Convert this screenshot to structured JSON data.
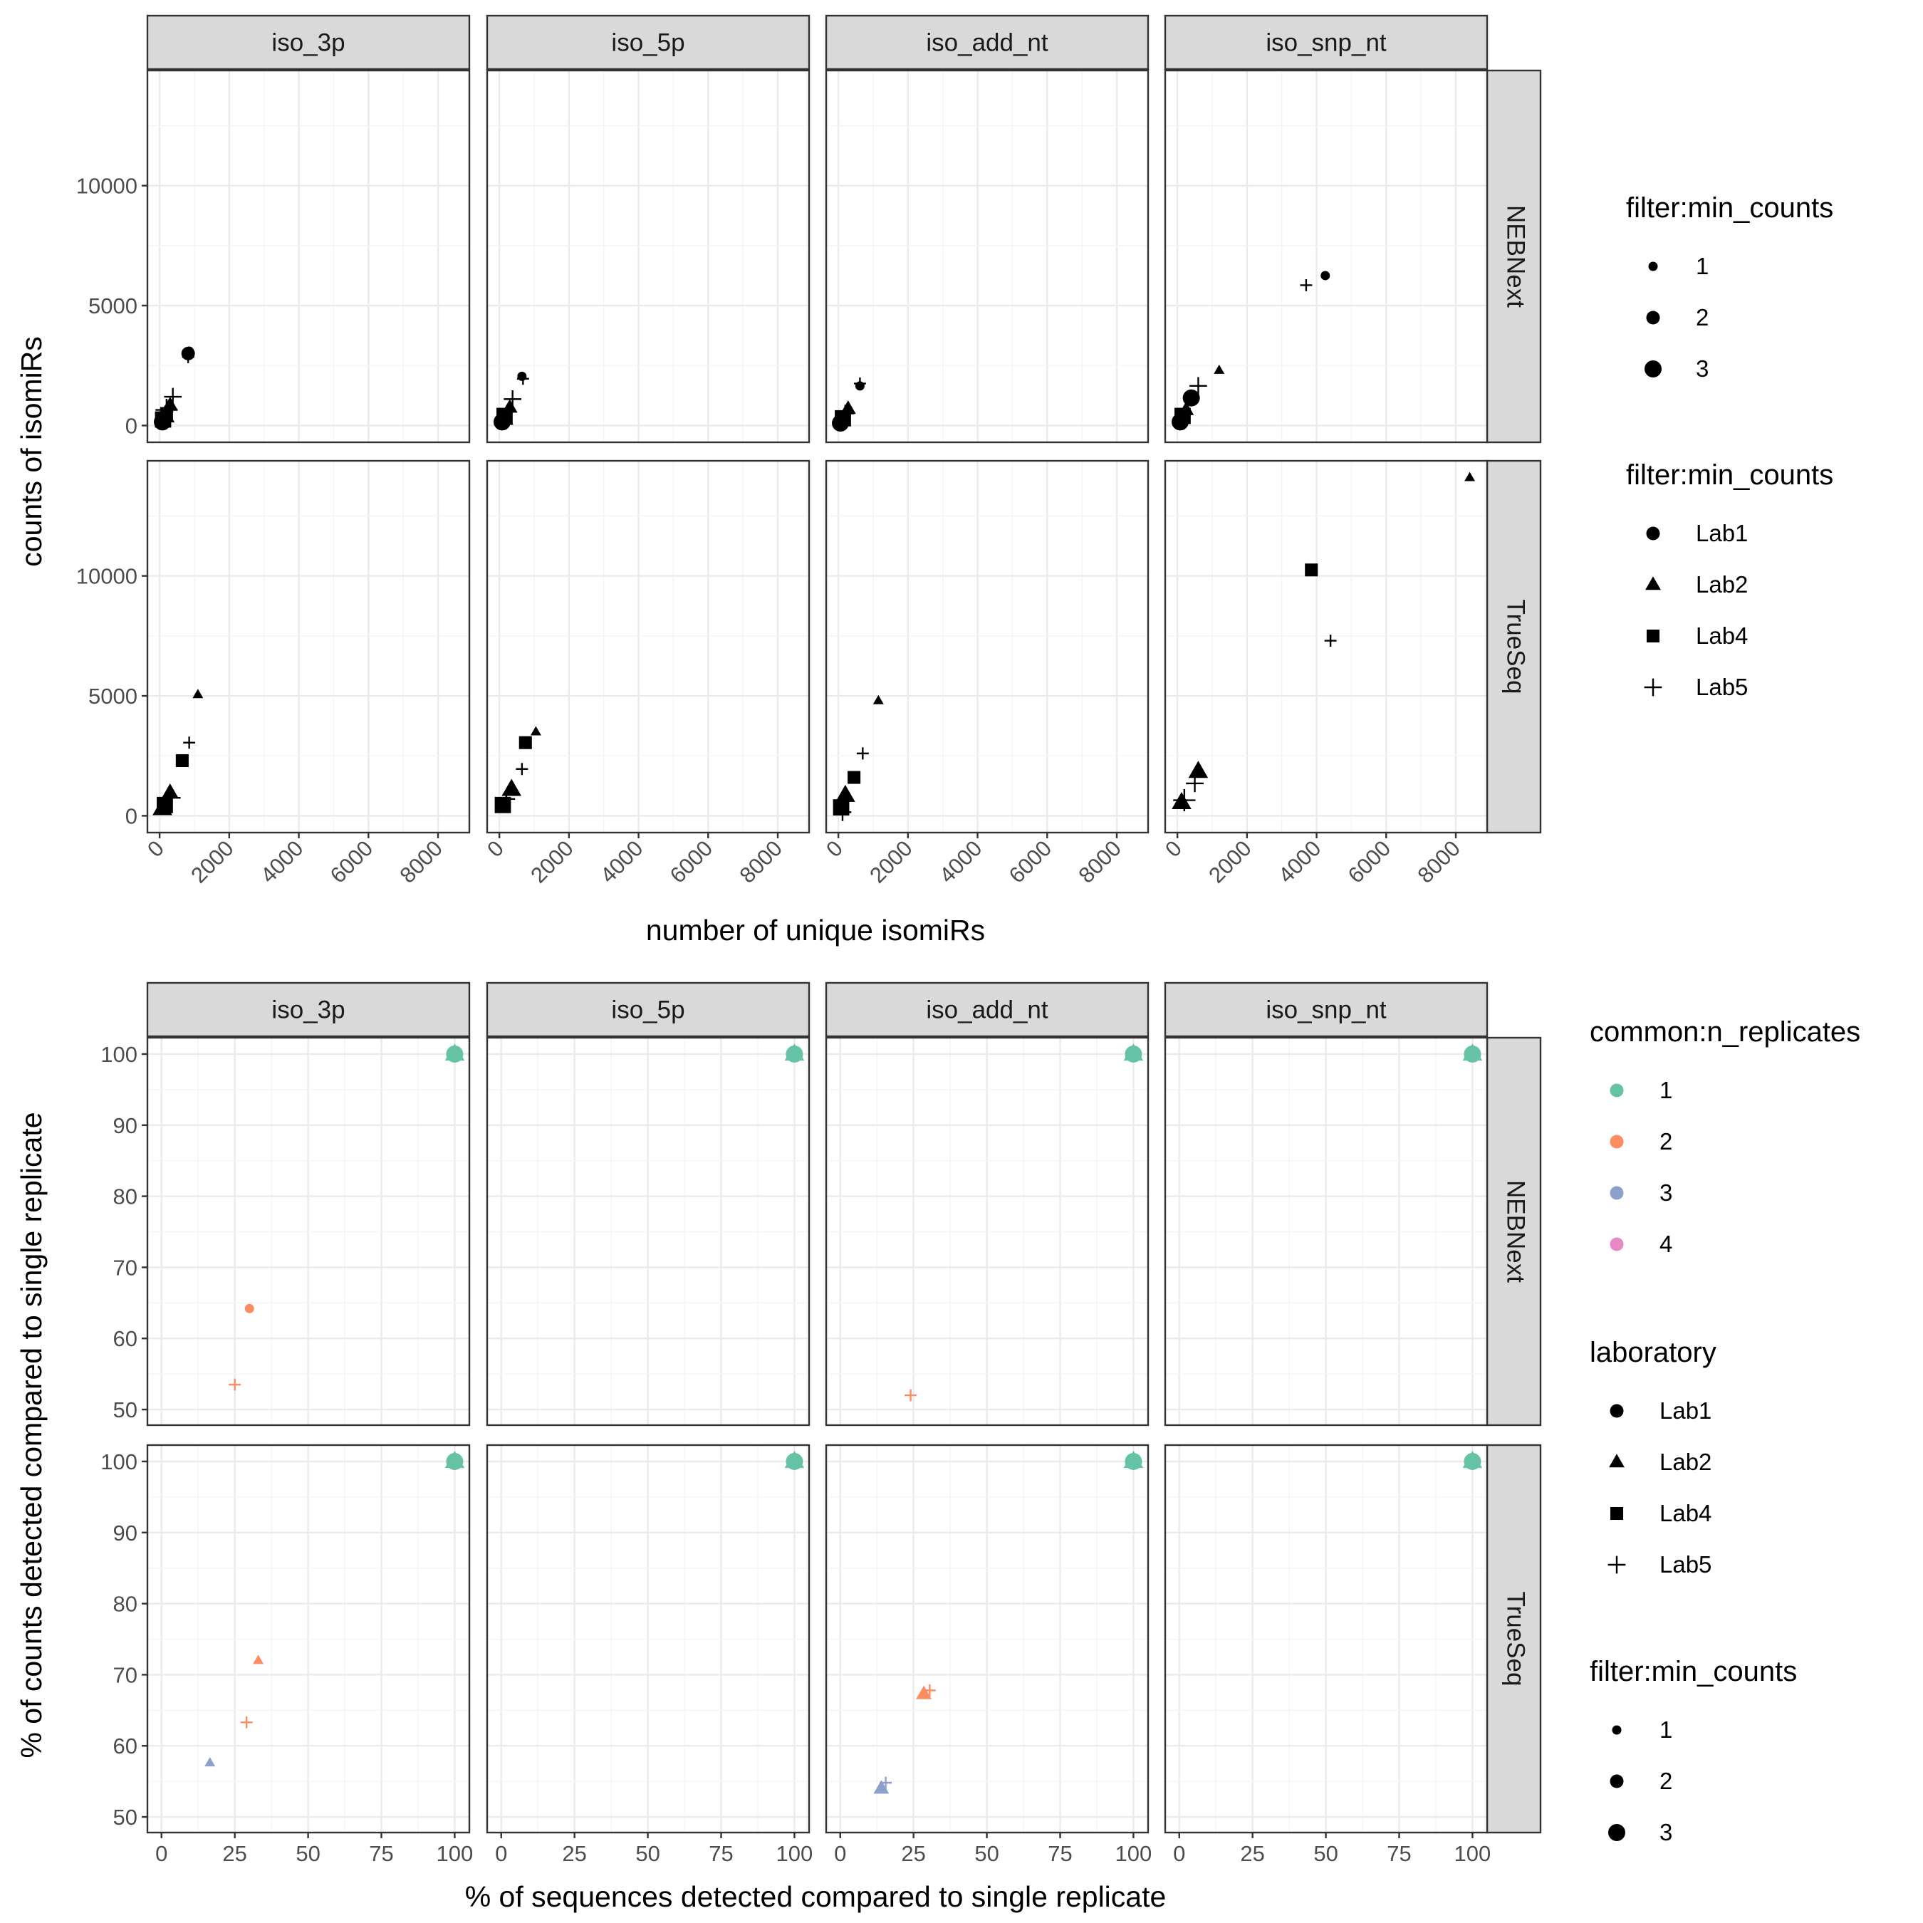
{
  "colors": {
    "common_1": "#66c2a5",
    "common_2": "#fc8d62",
    "common_3": "#8da0cb",
    "common_4": "#e78ac3",
    "black": "#000000"
  },
  "chart_data": [
    {
      "type": "scatter",
      "facets_cols": [
        "iso_3p",
        "iso_5p",
        "iso_add_nt",
        "iso_snp_nt"
      ],
      "facets_rows": [
        "NEBNext",
        "TrueSeq"
      ],
      "xlabel": "number of unique isomiRs",
      "ylabel": "counts of isomiRs",
      "xlim": [
        -350,
        8900
      ],
      "ylim": [
        -700,
        14800
      ],
      "x_ticks": [
        0,
        2000,
        4000,
        6000,
        8000
      ],
      "x_tick_labels": [
        "0",
        "2000",
        "4000",
        "6000",
        "8000"
      ],
      "y_ticks": [
        0,
        5000,
        10000
      ],
      "y_tick_labels": [
        "0",
        "5000",
        "10000"
      ],
      "legend_size": {
        "title": "filter:min_counts",
        "items": [
          "1",
          "2",
          "3"
        ]
      },
      "legend_shape": {
        "title": "filter:min_counts",
        "items": [
          "Lab1",
          "Lab2",
          "Lab4",
          "Lab5"
        ]
      },
      "points": [
        {
          "facet": "iso_3p",
          "row": "NEBNext",
          "lab": "Lab1",
          "size": 1,
          "x": 850,
          "y": 3100
        },
        {
          "facet": "iso_3p",
          "row": "NEBNext",
          "lab": "Lab1",
          "size": 2,
          "x": 820,
          "y": 3000
        },
        {
          "facet": "iso_3p",
          "row": "NEBNext",
          "lab": "Lab5",
          "size": 1,
          "x": 820,
          "y": 2850
        },
        {
          "facet": "iso_3p",
          "row": "NEBNext",
          "lab": "Lab5",
          "size": 2,
          "x": 380,
          "y": 1200
        },
        {
          "facet": "iso_3p",
          "row": "NEBNext",
          "lab": "Lab5",
          "size": 3,
          "x": 200,
          "y": 650
        },
        {
          "facet": "iso_3p",
          "row": "NEBNext",
          "lab": "Lab2",
          "size": 2,
          "x": 300,
          "y": 850
        },
        {
          "facet": "iso_3p",
          "row": "NEBNext",
          "lab": "Lab2",
          "size": 3,
          "x": 150,
          "y": 400
        },
        {
          "facet": "iso_3p",
          "row": "NEBNext",
          "lab": "Lab4",
          "size": 2,
          "x": 200,
          "y": 500
        },
        {
          "facet": "iso_3p",
          "row": "NEBNext",
          "lab": "Lab4",
          "size": 3,
          "x": 100,
          "y": 250
        },
        {
          "facet": "iso_3p",
          "row": "NEBNext",
          "lab": "Lab1",
          "size": 3,
          "x": 80,
          "y": 150
        },
        {
          "facet": "iso_3p",
          "row": "NEBNext",
          "lab": "Lab2",
          "size": 1,
          "x": 250,
          "y": 700
        },
        {
          "facet": "iso_5p",
          "row": "NEBNext",
          "lab": "Lab1",
          "size": 1,
          "x": 650,
          "y": 2050
        },
        {
          "facet": "iso_5p",
          "row": "NEBNext",
          "lab": "Lab5",
          "size": 1,
          "x": 680,
          "y": 1950
        },
        {
          "facet": "iso_5p",
          "row": "NEBNext",
          "lab": "Lab5",
          "size": 2,
          "x": 380,
          "y": 1100
        },
        {
          "facet": "iso_5p",
          "row": "NEBNext",
          "lab": "Lab2",
          "size": 2,
          "x": 300,
          "y": 750
        },
        {
          "facet": "iso_5p",
          "row": "NEBNext",
          "lab": "Lab4",
          "size": 3,
          "x": 150,
          "y": 400
        },
        {
          "facet": "iso_5p",
          "row": "NEBNext",
          "lab": "Lab1",
          "size": 3,
          "x": 80,
          "y": 150
        },
        {
          "facet": "iso_5p",
          "row": "NEBNext",
          "lab": "Lab2",
          "size": 3,
          "x": 120,
          "y": 300
        },
        {
          "facet": "iso_add_nt",
          "row": "NEBNext",
          "lab": "Lab1",
          "size": 1,
          "x": 620,
          "y": 1650
        },
        {
          "facet": "iso_add_nt",
          "row": "NEBNext",
          "lab": "Lab5",
          "size": 1,
          "x": 620,
          "y": 1750
        },
        {
          "facet": "iso_add_nt",
          "row": "NEBNext",
          "lab": "Lab2",
          "size": 2,
          "x": 280,
          "y": 700
        },
        {
          "facet": "iso_add_nt",
          "row": "NEBNext",
          "lab": "Lab5",
          "size": 2,
          "x": 200,
          "y": 500
        },
        {
          "facet": "iso_add_nt",
          "row": "NEBNext",
          "lab": "Lab4",
          "size": 3,
          "x": 130,
          "y": 300
        },
        {
          "facet": "iso_add_nt",
          "row": "NEBNext",
          "lab": "Lab1",
          "size": 3,
          "x": 60,
          "y": 100
        },
        {
          "facet": "iso_snp_nt",
          "row": "NEBNext",
          "lab": "Lab1",
          "size": 1,
          "x": 4250,
          "y": 6250
        },
        {
          "facet": "iso_snp_nt",
          "row": "NEBNext",
          "lab": "Lab5",
          "size": 1,
          "x": 3700,
          "y": 5850
        },
        {
          "facet": "iso_snp_nt",
          "row": "NEBNext",
          "lab": "Lab2",
          "size": 1,
          "x": 1200,
          "y": 2300
        },
        {
          "facet": "iso_snp_nt",
          "row": "NEBNext",
          "lab": "Lab5",
          "size": 2,
          "x": 600,
          "y": 1650
        },
        {
          "facet": "iso_snp_nt",
          "row": "NEBNext",
          "lab": "Lab1",
          "size": 3,
          "x": 400,
          "y": 1150
        },
        {
          "facet": "iso_snp_nt",
          "row": "NEBNext",
          "lab": "Lab2",
          "size": 2,
          "x": 250,
          "y": 650
        },
        {
          "facet": "iso_snp_nt",
          "row": "NEBNext",
          "lab": "Lab4",
          "size": 3,
          "x": 150,
          "y": 400
        },
        {
          "facet": "iso_snp_nt",
          "row": "NEBNext",
          "lab": "Lab1",
          "size": 3,
          "x": 80,
          "y": 150
        },
        {
          "facet": "iso_3p",
          "row": "TrueSeq",
          "lab": "Lab2",
          "size": 1,
          "x": 1100,
          "y": 5050
        },
        {
          "facet": "iso_3p",
          "row": "TrueSeq",
          "lab": "Lab5",
          "size": 1,
          "x": 850,
          "y": 3050
        },
        {
          "facet": "iso_3p",
          "row": "TrueSeq",
          "lab": "Lab4",
          "size": 2,
          "x": 650,
          "y": 2300
        },
        {
          "facet": "iso_3p",
          "row": "TrueSeq",
          "lab": "Lab2",
          "size": 2,
          "x": 300,
          "y": 1000
        },
        {
          "facet": "iso_3p",
          "row": "TrueSeq",
          "lab": "Lab5",
          "size": 2,
          "x": 350,
          "y": 750
        },
        {
          "facet": "iso_3p",
          "row": "TrueSeq",
          "lab": "Lab2",
          "size": 3,
          "x": 80,
          "y": 300
        },
        {
          "facet": "iso_3p",
          "row": "TrueSeq",
          "lab": "Lab4",
          "size": 3,
          "x": 150,
          "y": 450
        },
        {
          "facet": "iso_5p",
          "row": "TrueSeq",
          "lab": "Lab2",
          "size": 1,
          "x": 1050,
          "y": 3500
        },
        {
          "facet": "iso_5p",
          "row": "TrueSeq",
          "lab": "Lab4",
          "size": 2,
          "x": 750,
          "y": 3050
        },
        {
          "facet": "iso_5p",
          "row": "TrueSeq",
          "lab": "Lab5",
          "size": 1,
          "x": 650,
          "y": 1950
        },
        {
          "facet": "iso_5p",
          "row": "TrueSeq",
          "lab": "Lab2",
          "size": 3,
          "x": 350,
          "y": 1100
        },
        {
          "facet": "iso_5p",
          "row": "TrueSeq",
          "lab": "Lab4",
          "size": 3,
          "x": 100,
          "y": 450
        },
        {
          "facet": "iso_5p",
          "row": "TrueSeq",
          "lab": "Lab5",
          "size": 2,
          "x": 200,
          "y": 700
        },
        {
          "facet": "iso_add_nt",
          "row": "TrueSeq",
          "lab": "Lab2",
          "size": 1,
          "x": 1150,
          "y": 4800
        },
        {
          "facet": "iso_add_nt",
          "row": "TrueSeq",
          "lab": "Lab5",
          "size": 1,
          "x": 700,
          "y": 2600
        },
        {
          "facet": "iso_add_nt",
          "row": "TrueSeq",
          "lab": "Lab4",
          "size": 2,
          "x": 450,
          "y": 1600
        },
        {
          "facet": "iso_add_nt",
          "row": "TrueSeq",
          "lab": "Lab2",
          "size": 3,
          "x": 200,
          "y": 850
        },
        {
          "facet": "iso_add_nt",
          "row": "TrueSeq",
          "lab": "Lab4",
          "size": 3,
          "x": 80,
          "y": 350
        },
        {
          "facet": "iso_add_nt",
          "row": "TrueSeq",
          "lab": "Lab5",
          "size": 2,
          "x": 120,
          "y": 150
        },
        {
          "facet": "iso_snp_nt",
          "row": "TrueSeq",
          "lab": "Lab2",
          "size": 1,
          "x": 8400,
          "y": 14100
        },
        {
          "facet": "iso_snp_nt",
          "row": "TrueSeq",
          "lab": "Lab4",
          "size": 2,
          "x": 3850,
          "y": 10250
        },
        {
          "facet": "iso_snp_nt",
          "row": "TrueSeq",
          "lab": "Lab5",
          "size": 1,
          "x": 4400,
          "y": 7300
        },
        {
          "facet": "iso_snp_nt",
          "row": "TrueSeq",
          "lab": "Lab2",
          "size": 3,
          "x": 600,
          "y": 1850
        },
        {
          "facet": "iso_snp_nt",
          "row": "TrueSeq",
          "lab": "Lab5",
          "size": 2,
          "x": 500,
          "y": 1350
        },
        {
          "facet": "iso_snp_nt",
          "row": "TrueSeq",
          "lab": "Lab2",
          "size": 3,
          "x": 120,
          "y": 550
        },
        {
          "facet": "iso_snp_nt",
          "row": "TrueSeq",
          "lab": "Lab5",
          "size": 3,
          "x": 200,
          "y": 650
        }
      ]
    },
    {
      "type": "scatter",
      "facets_cols": [
        "iso_3p",
        "iso_5p",
        "iso_add_nt",
        "iso_snp_nt"
      ],
      "facets_rows": [
        "NEBNext",
        "TrueSeq"
      ],
      "xlabel": "% of sequences detected compared to single replicate",
      "ylabel": "% of counts detected compared to single replicate",
      "xlim": [
        -4.8,
        105
      ],
      "ylim": [
        47.8,
        102.3
      ],
      "x_ticks": [
        0,
        25,
        50,
        75,
        100
      ],
      "x_tick_labels": [
        "0",
        "25",
        "50",
        "75",
        "100"
      ],
      "y_ticks": [
        50,
        60,
        70,
        80,
        90,
        100
      ],
      "y_tick_labels": [
        "50",
        "60",
        "70",
        "80",
        "90",
        "100"
      ],
      "legend_color": {
        "title": "common:n_replicates",
        "items": [
          "1",
          "2",
          "3",
          "4"
        ]
      },
      "legend_shape": {
        "title": "laboratory",
        "items": [
          "Lab1",
          "Lab2",
          "Lab4",
          "Lab5"
        ]
      },
      "legend_size": {
        "title": "filter:min_counts",
        "items": [
          "1",
          "2",
          "3"
        ]
      },
      "points": [
        {
          "facet": "iso_3p",
          "row": "NEBNext",
          "lab": "Lab1",
          "n_rep": 1,
          "size": 3,
          "x": 100,
          "y": 100
        },
        {
          "facet": "iso_3p",
          "row": "NEBNext",
          "lab": "Lab2",
          "n_rep": 1,
          "size": 3,
          "x": 100,
          "y": 100
        },
        {
          "facet": "iso_3p",
          "row": "NEBNext",
          "lab": "Lab1",
          "n_rep": 2,
          "size": 1,
          "x": 30,
          "y": 64.2
        },
        {
          "facet": "iso_3p",
          "row": "NEBNext",
          "lab": "Lab5",
          "n_rep": 2,
          "size": 1,
          "x": 25,
          "y": 53.5
        },
        {
          "facet": "iso_5p",
          "row": "NEBNext",
          "lab": "Lab1",
          "n_rep": 1,
          "size": 3,
          "x": 100,
          "y": 100
        },
        {
          "facet": "iso_5p",
          "row": "NEBNext",
          "lab": "Lab2",
          "n_rep": 1,
          "size": 3,
          "x": 100,
          "y": 100
        },
        {
          "facet": "iso_add_nt",
          "row": "NEBNext",
          "lab": "Lab1",
          "n_rep": 1,
          "size": 3,
          "x": 100,
          "y": 100
        },
        {
          "facet": "iso_add_nt",
          "row": "NEBNext",
          "lab": "Lab2",
          "n_rep": 1,
          "size": 3,
          "x": 100,
          "y": 100
        },
        {
          "facet": "iso_add_nt",
          "row": "NEBNext",
          "lab": "Lab5",
          "n_rep": 2,
          "size": 1,
          "x": 24,
          "y": 52
        },
        {
          "facet": "iso_snp_nt",
          "row": "NEBNext",
          "lab": "Lab1",
          "n_rep": 1,
          "size": 3,
          "x": 100,
          "y": 100
        },
        {
          "facet": "iso_snp_nt",
          "row": "NEBNext",
          "lab": "Lab2",
          "n_rep": 1,
          "size": 3,
          "x": 100,
          "y": 100
        },
        {
          "facet": "iso_3p",
          "row": "TrueSeq",
          "lab": "Lab1",
          "n_rep": 1,
          "size": 3,
          "x": 100,
          "y": 100
        },
        {
          "facet": "iso_3p",
          "row": "TrueSeq",
          "lab": "Lab2",
          "n_rep": 1,
          "size": 3,
          "x": 100,
          "y": 100
        },
        {
          "facet": "iso_3p",
          "row": "TrueSeq",
          "lab": "Lab2",
          "n_rep": 2,
          "size": 1,
          "x": 33,
          "y": 72
        },
        {
          "facet": "iso_3p",
          "row": "TrueSeq",
          "lab": "Lab5",
          "n_rep": 2,
          "size": 1,
          "x": 29,
          "y": 63.3
        },
        {
          "facet": "iso_3p",
          "row": "TrueSeq",
          "lab": "Lab2",
          "n_rep": 3,
          "size": 1,
          "x": 16.5,
          "y": 57.6
        },
        {
          "facet": "iso_5p",
          "row": "TrueSeq",
          "lab": "Lab1",
          "n_rep": 1,
          "size": 3,
          "x": 100,
          "y": 100
        },
        {
          "facet": "iso_5p",
          "row": "TrueSeq",
          "lab": "Lab2",
          "n_rep": 1,
          "size": 3,
          "x": 100,
          "y": 100
        },
        {
          "facet": "iso_add_nt",
          "row": "TrueSeq",
          "lab": "Lab1",
          "n_rep": 1,
          "size": 3,
          "x": 100,
          "y": 100
        },
        {
          "facet": "iso_add_nt",
          "row": "TrueSeq",
          "lab": "Lab2",
          "n_rep": 1,
          "size": 3,
          "x": 100,
          "y": 100
        },
        {
          "facet": "iso_add_nt",
          "row": "TrueSeq",
          "lab": "Lab2",
          "n_rep": 2,
          "size": 2,
          "x": 28.5,
          "y": 67.3
        },
        {
          "facet": "iso_add_nt",
          "row": "TrueSeq",
          "lab": "Lab5",
          "n_rep": 2,
          "size": 1,
          "x": 30.5,
          "y": 67.8
        },
        {
          "facet": "iso_add_nt",
          "row": "TrueSeq",
          "lab": "Lab2",
          "n_rep": 3,
          "size": 2,
          "x": 14,
          "y": 54
        },
        {
          "facet": "iso_add_nt",
          "row": "TrueSeq",
          "lab": "Lab5",
          "n_rep": 3,
          "size": 1,
          "x": 15.5,
          "y": 54.8
        },
        {
          "facet": "iso_snp_nt",
          "row": "TrueSeq",
          "lab": "Lab1",
          "n_rep": 1,
          "size": 3,
          "x": 100,
          "y": 100
        },
        {
          "facet": "iso_snp_nt",
          "row": "TrueSeq",
          "lab": "Lab2",
          "n_rep": 1,
          "size": 3,
          "x": 100,
          "y": 100
        }
      ]
    }
  ]
}
